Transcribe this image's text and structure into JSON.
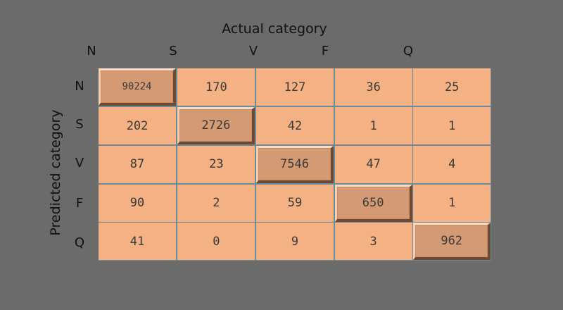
{
  "chart_data": {
    "type": "heatmap",
    "xlabel": "Actual category",
    "ylabel": "Predicted category",
    "columns": [
      "N",
      "S",
      "V",
      "F",
      "Q"
    ],
    "rows": [
      "N",
      "S",
      "V",
      "F",
      "Q"
    ],
    "values": [
      [
        90224,
        170,
        127,
        36,
        25
      ],
      [
        202,
        2726,
        42,
        1,
        1
      ],
      [
        87,
        23,
        7546,
        47,
        4
      ],
      [
        90,
        2,
        59,
        650,
        1
      ],
      [
        41,
        0,
        9,
        3,
        962
      ]
    ],
    "colors": {
      "cell": "#f4b183",
      "diagonal": "#d39a73",
      "background": "#6b6b6b"
    }
  }
}
